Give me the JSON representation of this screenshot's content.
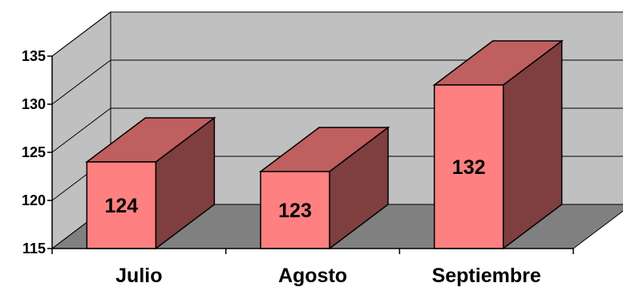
{
  "chart_data": {
    "type": "bar",
    "categories": [
      "Julio",
      "Agosto",
      "Septiembre"
    ],
    "values": [
      124,
      123,
      132
    ],
    "ylim": [
      115,
      135
    ],
    "yticks": [
      115,
      120,
      125,
      130,
      135
    ],
    "grid": true,
    "legend": "none",
    "three_d": true,
    "colors": {
      "bar_front": "#FF8080",
      "bar_side": "#7F3F3F",
      "bar_top": "#C05F5F",
      "wall": "#C0C0C0",
      "floor": "#808080",
      "edge": "#000000"
    }
  }
}
